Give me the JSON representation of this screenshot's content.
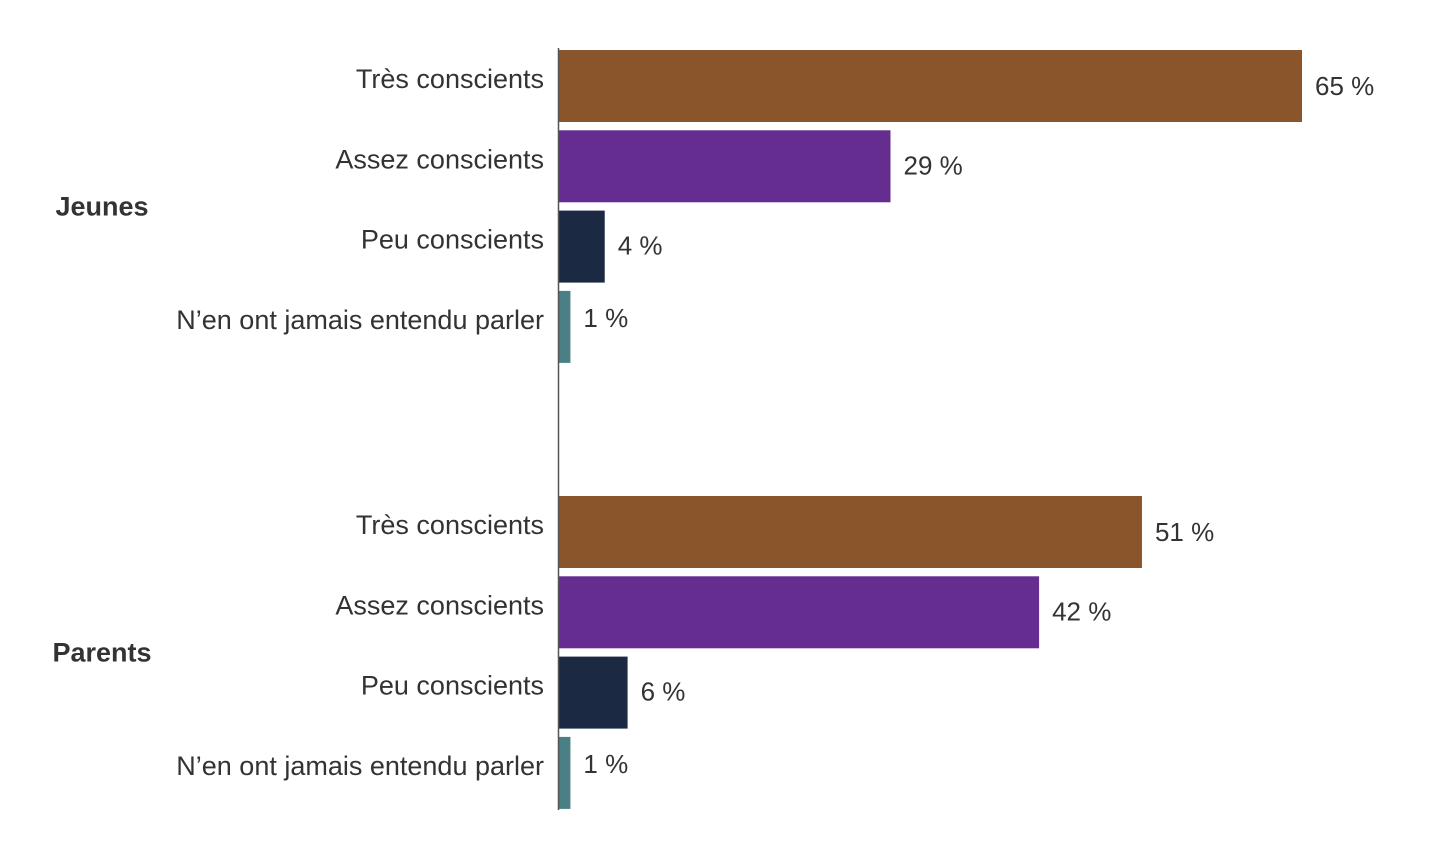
{
  "chart_data": {
    "type": "bar",
    "orientation": "horizontal",
    "xlim": [
      0,
      65
    ],
    "value_suffix": " %",
    "groups": [
      {
        "name": "Jeunes",
        "categories": [
          "Très conscients",
          "Assez conscients",
          "Peu conscients",
          "N’en ont jamais entendu parler"
        ],
        "values": [
          65,
          29,
          4,
          1
        ]
      },
      {
        "name": "Parents",
        "categories": [
          "Très conscients",
          "Assez conscients",
          "Peu conscients",
          "N’en ont jamais entendu parler"
        ],
        "values": [
          51,
          42,
          6,
          1
        ]
      }
    ],
    "colors": [
      "#8b552b",
      "#642d8f",
      "#1b2a42",
      "#4a7f86"
    ],
    "grid": false,
    "legend": "none"
  }
}
